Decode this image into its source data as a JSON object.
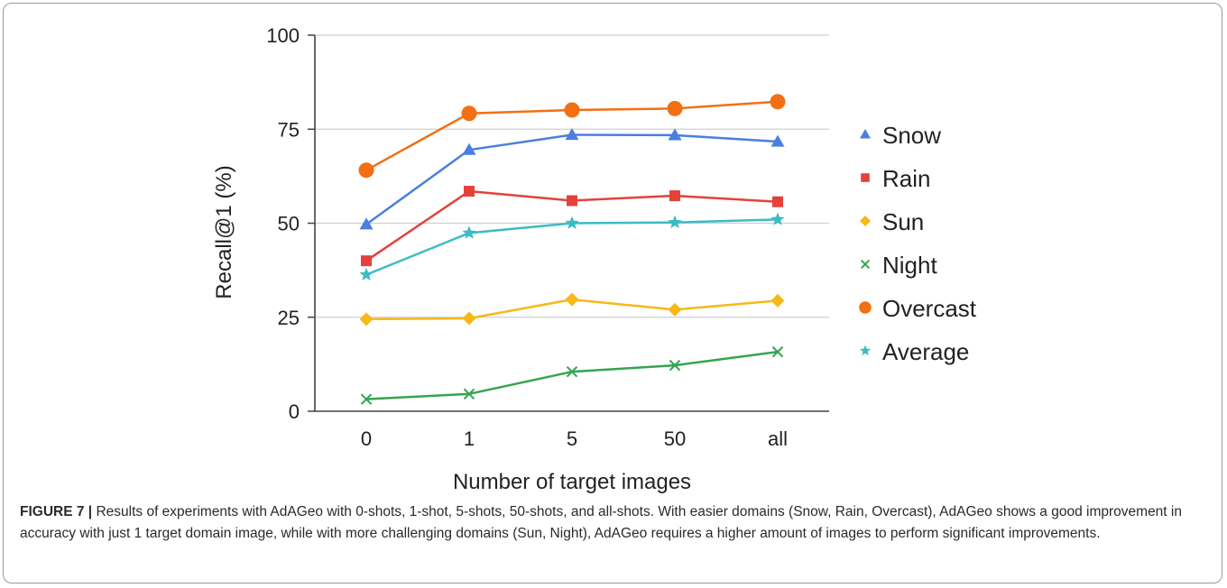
{
  "caption": {
    "label": "FIGURE 7 |",
    "text": "Results of experiments with AdAGeo with 0-shots, 1-shot, 5-shots, 50-shots, and all-shots. With easier domains (Snow, Rain, Overcast), AdAGeo shows a good improvement in accuracy with just 1 target domain image, while with more challenging domains (Sun, Night), AdAGeo requires a higher amount of images to perform significant improvements."
  },
  "chart_data": {
    "type": "line",
    "xlabel": "Number of target images",
    "ylabel": "Recall@1 (%)",
    "categories": [
      "0",
      "1",
      "5",
      "50",
      "all"
    ],
    "ylim": [
      0,
      100
    ],
    "yticks": [
      0,
      25,
      50,
      75,
      100
    ],
    "grid": true,
    "legend_position": "right",
    "series": [
      {
        "name": "Snow",
        "color": "#4a7fe0",
        "marker": "triangle",
        "values": [
          49.7,
          69.5,
          73.5,
          73.4,
          71.7
        ]
      },
      {
        "name": "Rain",
        "color": "#e5413a",
        "marker": "square",
        "values": [
          40.0,
          58.5,
          56.0,
          57.3,
          55.7
        ]
      },
      {
        "name": "Sun",
        "color": "#f7b916",
        "marker": "diamond",
        "values": [
          24.5,
          24.7,
          29.7,
          27.0,
          29.4
        ]
      },
      {
        "name": "Night",
        "color": "#35a450",
        "marker": "cross",
        "values": [
          3.2,
          4.6,
          10.5,
          12.2,
          15.8
        ]
      },
      {
        "name": "Overcast",
        "color": "#f26f14",
        "marker": "circle",
        "values": [
          64.1,
          79.2,
          80.1,
          80.5,
          82.3
        ]
      },
      {
        "name": "Average",
        "color": "#3bbcc4",
        "marker": "star",
        "values": [
          36.3,
          47.4,
          50.0,
          50.2,
          51.0
        ]
      }
    ]
  }
}
